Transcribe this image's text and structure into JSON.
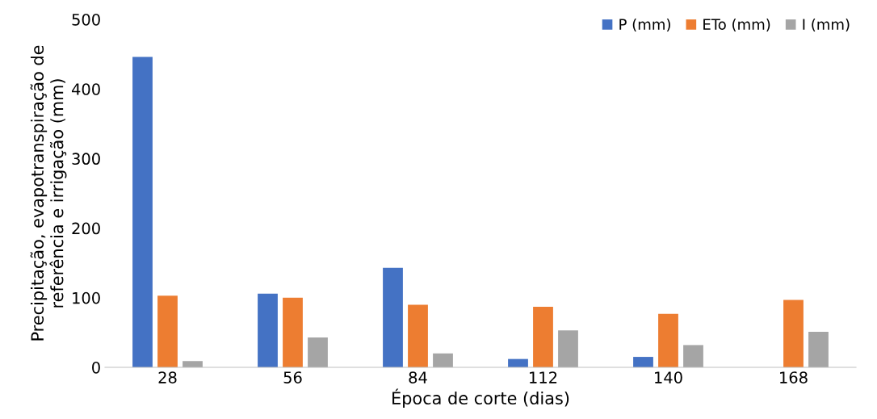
{
  "chart_data": {
    "type": "bar",
    "xlabel": "Época de corte (dias)",
    "ylabel": "Precipitação, evapotranspiração de\nreferência e irrigação (mm)",
    "categories": [
      "28",
      "56",
      "84",
      "112",
      "140",
      "168"
    ],
    "series": [
      {
        "name": "P (mm)",
        "color": "#4472c4",
        "values": [
          446,
          106,
          143,
          12,
          15,
          0
        ]
      },
      {
        "name": "ETo (mm)",
        "color": "#ed7d31",
        "values": [
          103,
          100,
          90,
          87,
          77,
          97
        ]
      },
      {
        "name": "I (mm)",
        "color": "#a5a5a5",
        "values": [
          9,
          43,
          20,
          53,
          32,
          51
        ]
      }
    ],
    "ylim": [
      0,
      500
    ],
    "yticks": [
      0,
      100,
      200,
      300,
      400,
      500
    ],
    "grid": false,
    "legend": "top right"
  }
}
